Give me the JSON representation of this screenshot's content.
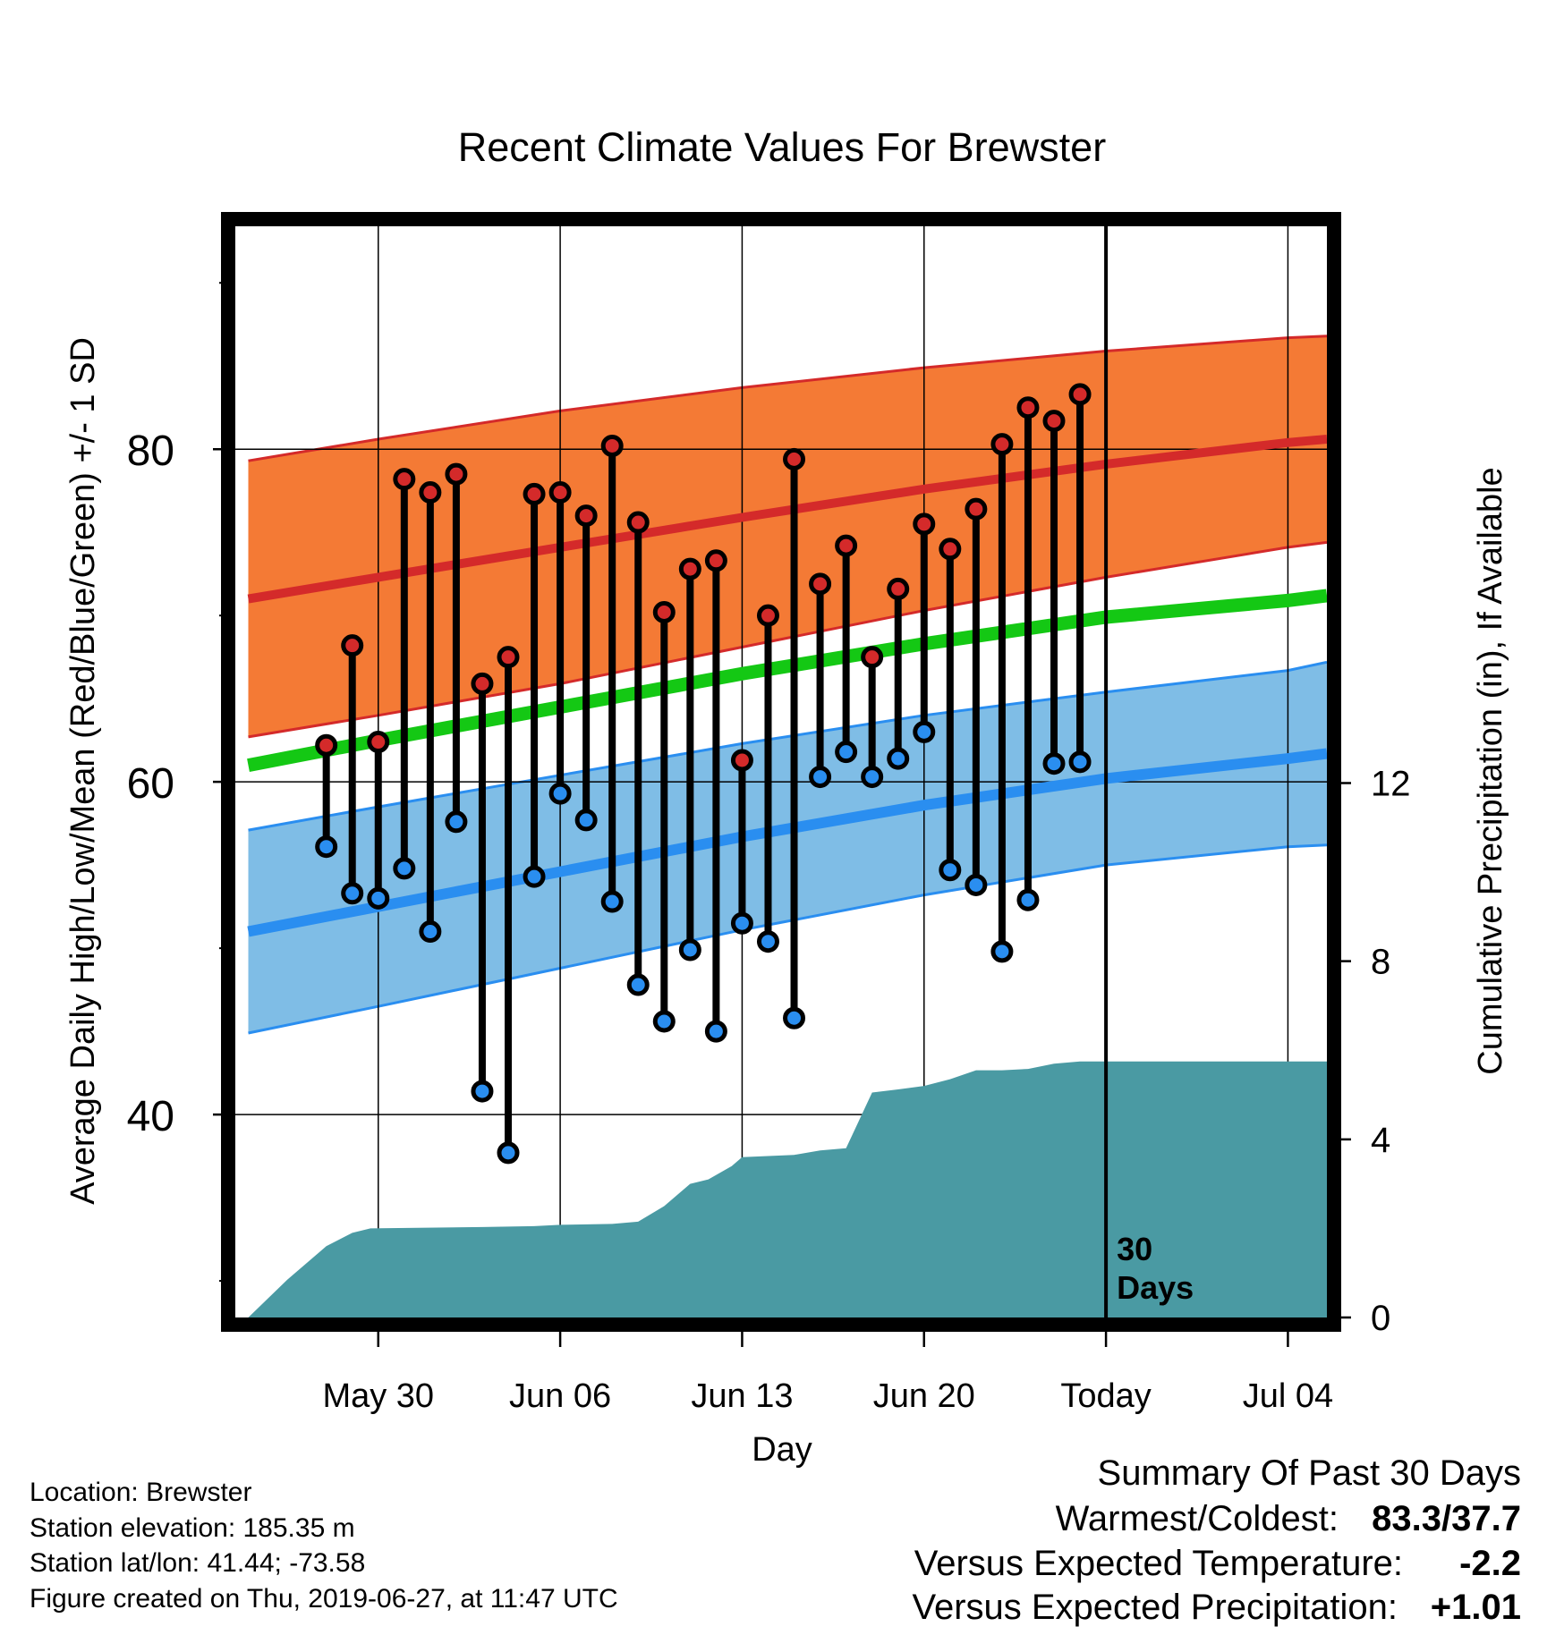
{
  "chart_data": {
    "type": "line",
    "title": "Recent Climate Values For Brewster",
    "xlabel": "Day",
    "ylabel": "Average Daily High/Low/Mean (Red/Blue/Green) +/- 1 SD",
    "y2label": "Cumulative Precipitation (in), If Available",
    "x_axis": {
      "range_days": [
        -33.5,
        8.5
      ],
      "tick_days": [
        -28,
        -21,
        -14,
        -7,
        0,
        7
      ],
      "tick_labels": [
        "May 30",
        "Jun 06",
        "Jun 13",
        "Jun 20",
        "Today",
        "Jul 04"
      ]
    },
    "ylim": [
      27.8,
      93.4
    ],
    "yticks": [
      40,
      60,
      80
    ],
    "y_minor_ticks": [
      30,
      50,
      70,
      90
    ],
    "y2lim": [
      0,
      24.5
    ],
    "y2ticks": [
      0,
      4,
      8,
      12
    ],
    "today_marker": {
      "day": 0,
      "label_line1": "30",
      "label_line2": "Days"
    },
    "colors": {
      "high_band": "#f47a35",
      "high_line": "#d42a2a",
      "low_band": "#7fbde6",
      "low_line": "#2a8ef0",
      "mean_line": "#14c814",
      "precip": "#4a9aa3",
      "high_marker": "#d42a2a",
      "low_marker": "#2a8ef0"
    },
    "normals": {
      "days": [
        -33,
        -28,
        -21,
        -14,
        -7,
        0,
        7,
        8.5
      ],
      "high_mean": [
        71.0,
        72.3,
        74.1,
        75.9,
        77.6,
        79.1,
        80.4,
        80.6
      ],
      "high_sd": [
        8.3,
        8.3,
        8.2,
        7.8,
        7.3,
        6.8,
        6.3,
        6.2
      ],
      "low_mean": [
        51.0,
        52.5,
        54.6,
        56.7,
        58.6,
        60.2,
        61.4,
        61.7
      ],
      "low_sd": [
        6.1,
        6.0,
        5.8,
        5.6,
        5.4,
        5.2,
        5.3,
        5.5
      ],
      "mean": [
        61.0,
        62.5,
        64.5,
        66.5,
        68.3,
        69.9,
        70.9,
        71.2
      ]
    },
    "observations": {
      "days": [
        -30,
        -29,
        -28,
        -27,
        -26,
        -25,
        -24,
        -23,
        -22,
        -21,
        -20,
        -19,
        -18,
        -17,
        -16,
        -15,
        -14,
        -13,
        -12,
        -11,
        -10,
        -9,
        -8,
        -7,
        -6,
        -5,
        -4,
        -3,
        -2,
        -1
      ],
      "highs": [
        62.2,
        68.2,
        62.4,
        78.2,
        77.4,
        78.5,
        65.9,
        67.5,
        77.3,
        77.4,
        76.0,
        80.2,
        75.6,
        70.2,
        72.8,
        73.3,
        61.3,
        70.0,
        79.4,
        71.9,
        74.2,
        67.5,
        71.6,
        75.5,
        74.0,
        76.4,
        80.3,
        82.5,
        81.7,
        83.3
      ],
      "lows": [
        56.1,
        53.3,
        53.0,
        54.8,
        51.0,
        57.6,
        41.4,
        37.7,
        54.3,
        59.3,
        57.7,
        52.8,
        47.8,
        45.6,
        49.9,
        45.0,
        51.5,
        50.4,
        45.8,
        60.3,
        61.8,
        60.3,
        61.4,
        63.0,
        54.7,
        53.8,
        49.8,
        52.9,
        61.1,
        61.2
      ]
    },
    "precipitation_cumulative": {
      "days": [
        -33,
        -31.5,
        -30,
        -29,
        -28.3,
        -24,
        -22,
        -21,
        -19,
        -18,
        -17,
        -16,
        -15.3,
        -14.4,
        -14,
        -12,
        -11,
        -10,
        -9,
        -8,
        -7,
        -6,
        -5,
        -4,
        -3,
        -2,
        -1,
        0,
        8.5
      ],
      "values": [
        0.0,
        0.85,
        1.6,
        1.9,
        2.0,
        2.03,
        2.05,
        2.08,
        2.1,
        2.15,
        2.5,
        3.0,
        3.1,
        3.4,
        3.6,
        3.65,
        3.75,
        3.8,
        5.05,
        5.12,
        5.2,
        5.35,
        5.55,
        5.55,
        5.58,
        5.7,
        5.75,
        5.75,
        5.75
      ]
    }
  },
  "footer": {
    "location": "Location: Brewster",
    "elevation": "Station elevation: 185.35 m",
    "latlon": "Station lat/lon: 41.44; -73.58",
    "created": "Figure created on Thu, 2019-06-27, at 11:47 UTC"
  },
  "summary": {
    "title": "Summary Of Past 30 Days",
    "warm_cold_label": "Warmest/Coldest:",
    "warm_cold_value": "83.3/37.7",
    "temp_label": "Versus Expected Temperature:",
    "temp_value": "-2.2",
    "precip_label": "Versus Expected Precipitation:",
    "precip_value": "+1.01",
    "temp_value_color": "#2a8ef0",
    "precip_value_color": "#14c814"
  }
}
